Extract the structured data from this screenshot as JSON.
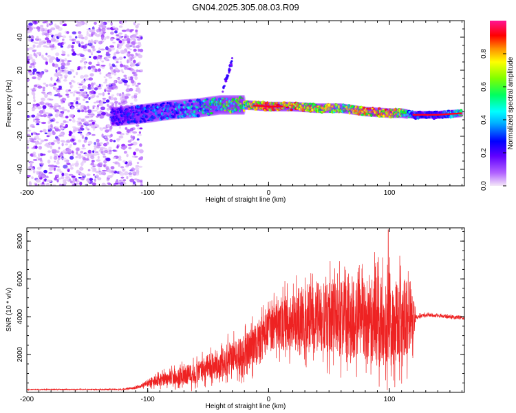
{
  "title": "GN04.2025.305.08.03.R09",
  "colors": {
    "snr_line": "#ee2222",
    "axis": "#000000",
    "background": "#ffffff"
  },
  "chart_data": [
    {
      "type": "heatmap",
      "name": "spectrogram",
      "xlabel": "Height of straight line (km)",
      "ylabel": "Frequency (Hz)",
      "xlim": [
        -200,
        162
      ],
      "ylim": [
        -50,
        50
      ],
      "xticks": [
        -200,
        -100,
        0,
        100
      ],
      "xtick_labels": [
        "-200",
        "-100",
        "0",
        "100"
      ],
      "yticks": [
        -40,
        -20,
        0,
        20,
        40
      ],
      "ytick_labels": [
        "-40",
        "-20",
        "0",
        "20",
        "40"
      ],
      "colorbar": {
        "label": "Normalized spectral amplitude",
        "range": [
          0,
          1
        ],
        "ticks": [
          0.0,
          0.2,
          0.4,
          0.6,
          0.8
        ],
        "tick_labels": [
          "0.0",
          "0.2",
          "0.4",
          "0.6",
          "0.8"
        ],
        "colormap": [
          "#f4e8f8",
          "#8000ff",
          "#0000ff",
          "#00ffff",
          "#00ff00",
          "#ffff00",
          "#ff8000",
          "#ff0000",
          "#ff1493"
        ]
      },
      "ridge": {
        "x": [
          -125,
          -100,
          -80,
          -60,
          -40,
          -20,
          0,
          20,
          40,
          60,
          80,
          100,
          110,
          120,
          140,
          160
        ],
        "frequency": [
          -8,
          -6,
          -4,
          -3,
          -1,
          -1,
          -2,
          -2,
          -3,
          -3,
          -5,
          -6,
          -6,
          -7,
          -7,
          -6
        ],
        "amplitude": [
          0.25,
          0.3,
          0.35,
          0.4,
          0.5,
          0.6,
          0.9,
          0.8,
          0.7,
          0.6,
          0.8,
          0.8,
          0.6,
          0.3,
          0.25,
          0.5
        ]
      },
      "noise_region": {
        "x": [
          -200,
          -105
        ],
        "frequency": [
          -50,
          50
        ]
      },
      "spur": {
        "x": [
          -38,
          -30
        ],
        "frequency": [
          8,
          26
        ]
      }
    },
    {
      "type": "line",
      "name": "snr",
      "xlabel": "Height of straight line (km)",
      "ylabel": "SNR (10 * v/v)",
      "xlim": [
        -200,
        162
      ],
      "ylim": [
        0,
        8700
      ],
      "xticks": [
        -200,
        -100,
        0,
        100
      ],
      "xtick_labels": [
        "-200",
        "-100",
        "0",
        "100"
      ],
      "yticks": [
        2000,
        4000,
        6000,
        8000
      ],
      "ytick_labels": [
        "2000",
        "4000",
        "6000",
        "8000"
      ],
      "series": [
        {
          "name": "SNR",
          "x": [
            -200,
            -180,
            -160,
            -140,
            -120,
            -105,
            -100,
            -90,
            -80,
            -70,
            -60,
            -50,
            -40,
            -30,
            -20,
            -10,
            0,
            10,
            20,
            30,
            40,
            50,
            60,
            70,
            80,
            90,
            100,
            110,
            118,
            122,
            130,
            140,
            150,
            162
          ],
          "values": [
            150,
            150,
            150,
            150,
            160,
            300,
            500,
            650,
            800,
            900,
            1000,
            1300,
            1600,
            1800,
            2000,
            2600,
            3200,
            3600,
            3800,
            4000,
            4000,
            3900,
            3900,
            3800,
            3700,
            3800,
            3700,
            3800,
            3900,
            4000,
            4100,
            4050,
            4000,
            3950
          ],
          "noise_amplitude": [
            30,
            30,
            30,
            30,
            40,
            80,
            200,
            300,
            400,
            500,
            600,
            700,
            800,
            900,
            1000,
            1100,
            1200,
            1400,
            1600,
            1700,
            1800,
            1900,
            2000,
            2100,
            2200,
            2300,
            2300,
            2200,
            2000,
            100,
            80,
            80,
            80,
            80
          ],
          "max_peak": {
            "x": 99,
            "value": 8600
          }
        }
      ]
    }
  ]
}
